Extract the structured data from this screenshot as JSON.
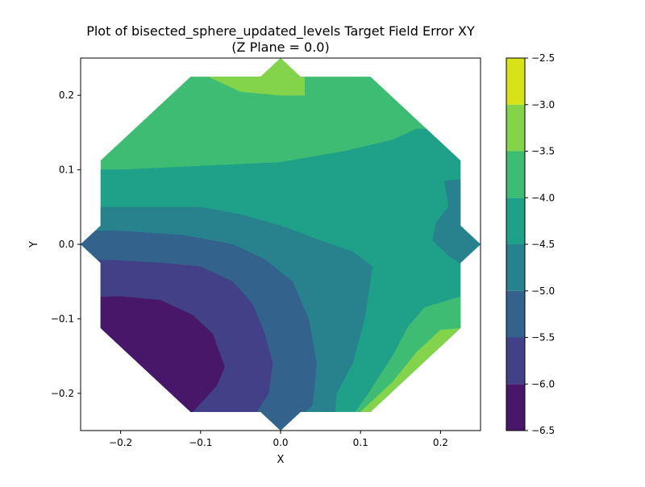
{
  "chart_data": {
    "type": "filled-contour",
    "title_line1": "Plot of bisected_sphere_updated_levels Target Field Error XY",
    "title_line2": "(Z Plane = 0.0)",
    "xlabel": "X",
    "ylabel": "Y",
    "xlim": [
      -0.25,
      0.25
    ],
    "ylim": [
      -0.25,
      0.25
    ],
    "x_ticks": [
      -0.2,
      -0.1,
      0.0,
      0.1,
      0.2
    ],
    "x_tick_labels": [
      "−0.2",
      "−0.1",
      "0.0",
      "0.1",
      "0.2"
    ],
    "y_ticks": [
      -0.2,
      -0.1,
      0.0,
      0.1,
      0.2
    ],
    "y_tick_labels": [
      "−0.2",
      "−0.1",
      "0.0",
      "0.1",
      "0.2"
    ],
    "grid": false,
    "colorbar": {
      "levels": [
        -6.5,
        -6.0,
        -5.5,
        -5.0,
        -4.5,
        -4.0,
        -3.5,
        -3.0,
        -2.5
      ],
      "tick_labels": [
        "−6.5",
        "−6.0",
        "−5.5",
        "−5.0",
        "−4.5",
        "−4.0",
        "−3.5",
        "−3.0",
        "−2.5"
      ],
      "colors": [
        "#481769",
        "#424086",
        "#33638d",
        "#28828e",
        "#1fa088",
        "#3fbc73",
        "#84d44b",
        "#d8e219"
      ]
    },
    "domain_outline": [
      [
        -0.1125,
        0.225
      ],
      [
        -0.025,
        0.225
      ],
      [
        0.0,
        0.25
      ],
      [
        0.025,
        0.225
      ],
      [
        0.1125,
        0.225
      ],
      [
        0.225,
        0.1125
      ],
      [
        0.225,
        0.025
      ],
      [
        0.25,
        0.0
      ],
      [
        0.225,
        -0.025
      ],
      [
        0.225,
        -0.1125
      ],
      [
        0.1125,
        -0.225
      ],
      [
        0.025,
        -0.225
      ],
      [
        0.0,
        -0.25
      ],
      [
        -0.025,
        -0.225
      ],
      [
        -0.1125,
        -0.225
      ],
      [
        -0.225,
        -0.1125
      ],
      [
        -0.225,
        -0.025
      ],
      [
        -0.25,
        0.0
      ],
      [
        -0.225,
        0.025
      ],
      [
        -0.225,
        0.1125
      ]
    ],
    "contour_regions": [
      {
        "level": [
          -4.0,
          -3.5
        ],
        "polygon": [
          [
            -0.25,
            0.25
          ],
          [
            0.25,
            0.25
          ],
          [
            0.25,
            -0.25
          ],
          [
            -0.25,
            -0.25
          ]
        ]
      },
      {
        "level": [
          -3.5,
          -3.0
        ],
        "polygon": [
          [
            -0.09,
            0.225
          ],
          [
            -0.05,
            0.205
          ],
          [
            0.0,
            0.2
          ],
          [
            0.03,
            0.2
          ],
          [
            0.03,
            0.26
          ],
          [
            -0.09,
            0.26
          ]
        ]
      },
      {
        "level": [
          -4.5,
          -4.0
        ],
        "polygon": [
          [
            -0.25,
            0.1
          ],
          [
            -0.2,
            0.1
          ],
          [
            -0.1,
            0.105
          ],
          [
            0.0,
            0.11
          ],
          [
            0.08,
            0.125
          ],
          [
            0.14,
            0.14
          ],
          [
            0.17,
            0.155
          ],
          [
            0.26,
            0.155
          ],
          [
            0.26,
            -0.26
          ],
          [
            -0.25,
            -0.26
          ]
        ]
      },
      {
        "level": [
          -5.0,
          -4.5
        ],
        "polygon": [
          [
            0.205,
            0.085
          ],
          [
            0.21,
            0.05
          ],
          [
            0.195,
            0.03
          ],
          [
            0.19,
            0.005
          ],
          [
            0.21,
            -0.015
          ],
          [
            0.23,
            -0.03
          ],
          [
            0.26,
            -0.03
          ],
          [
            0.26,
            0.09
          ]
        ]
      },
      {
        "level": [
          -4.0,
          -3.5
        ],
        "polygon": [
          [
            0.26,
            -0.06
          ],
          [
            0.21,
            -0.075
          ],
          [
            0.18,
            -0.085
          ],
          [
            0.16,
            -0.11
          ],
          [
            0.14,
            -0.15
          ],
          [
            0.11,
            -0.2
          ],
          [
            0.09,
            -0.23
          ],
          [
            0.26,
            -0.23
          ]
        ]
      },
      {
        "level": [
          -3.5,
          -3.0
        ],
        "polygon": [
          [
            0.26,
            -0.11
          ],
          [
            0.2,
            -0.115
          ],
          [
            0.17,
            -0.145
          ],
          [
            0.14,
            -0.185
          ],
          [
            0.115,
            -0.21
          ],
          [
            0.095,
            -0.23
          ],
          [
            0.26,
            -0.23
          ]
        ]
      },
      {
        "level": [
          -5.0,
          -4.5
        ],
        "polygon": [
          [
            -0.26,
            0.05
          ],
          [
            -0.2,
            0.05
          ],
          [
            -0.1,
            0.05
          ],
          [
            -0.05,
            0.04
          ],
          [
            0.0,
            0.025
          ],
          [
            0.05,
            0.005
          ],
          [
            0.09,
            -0.01
          ],
          [
            0.115,
            -0.03
          ],
          [
            0.105,
            -0.1
          ],
          [
            0.09,
            -0.16
          ],
          [
            0.07,
            -0.2
          ],
          [
            0.065,
            -0.26
          ],
          [
            -0.26,
            -0.26
          ]
        ]
      },
      {
        "level": [
          -5.5,
          -5.0
        ],
        "polygon": [
          [
            -0.26,
            0.018
          ],
          [
            -0.2,
            0.018
          ],
          [
            -0.12,
            0.012
          ],
          [
            -0.06,
            0.0
          ],
          [
            -0.02,
            -0.02
          ],
          [
            0.015,
            -0.05
          ],
          [
            0.035,
            -0.1
          ],
          [
            0.045,
            -0.16
          ],
          [
            0.04,
            -0.215
          ],
          [
            0.0,
            -0.26
          ],
          [
            -0.26,
            -0.26
          ]
        ]
      },
      {
        "level": [
          -6.0,
          -5.5
        ],
        "polygon": [
          [
            -0.26,
            -0.02
          ],
          [
            -0.2,
            -0.022
          ],
          [
            -0.15,
            -0.025
          ],
          [
            -0.1,
            -0.03
          ],
          [
            -0.06,
            -0.05
          ],
          [
            -0.035,
            -0.08
          ],
          [
            -0.02,
            -0.12
          ],
          [
            -0.01,
            -0.16
          ],
          [
            -0.015,
            -0.2
          ],
          [
            -0.03,
            -0.225
          ],
          [
            -0.05,
            -0.26
          ],
          [
            -0.26,
            -0.26
          ]
        ]
      },
      {
        "level": [
          -6.5,
          -6.0
        ],
        "polygon": [
          [
            -0.26,
            -0.072
          ],
          [
            -0.2,
            -0.07
          ],
          [
            -0.15,
            -0.075
          ],
          [
            -0.11,
            -0.095
          ],
          [
            -0.085,
            -0.12
          ],
          [
            -0.07,
            -0.165
          ],
          [
            -0.08,
            -0.19
          ],
          [
            -0.11,
            -0.225
          ],
          [
            -0.26,
            -0.26
          ]
        ]
      }
    ]
  }
}
